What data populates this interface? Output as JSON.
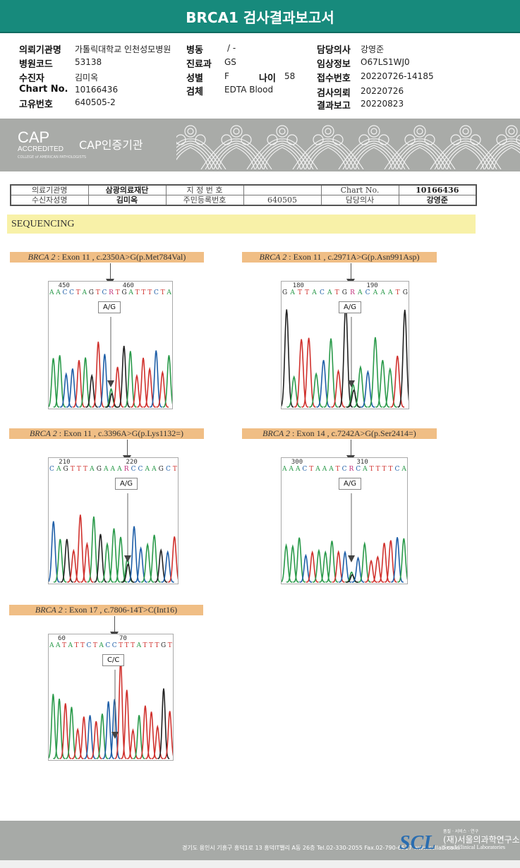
{
  "title": "BRCA1 검사결과보고서",
  "info": {
    "c1": [
      {
        "label": "의뢰기관명",
        "value": "가톨릭대학교 인천성모병원"
      },
      {
        "label": "병원코드",
        "value": "53138"
      },
      {
        "label": "수진자",
        "value": "김미옥"
      },
      {
        "label": "Chart No.",
        "value": "10166436"
      },
      {
        "label": "고유번호",
        "value": "640505-2"
      }
    ],
    "c2": [
      {
        "label": "병동",
        "value": "/ -"
      },
      {
        "label": "진료과",
        "value": "GS"
      },
      {
        "label": "성별",
        "value": "F"
      },
      {
        "label": "검체",
        "value": "EDTA Blood"
      }
    ],
    "age": {
      "label": "나이",
      "value": "58"
    },
    "c3": [
      {
        "label": "담당의사",
        "value": "강영준"
      },
      {
        "label": "임상정보",
        "value": "O67LS1WJ0"
      },
      {
        "label": "접수번호",
        "value": "20220726-14185"
      },
      {
        "label": "검사의뢰",
        "value": "20220726"
      },
      {
        "label": "결과보고",
        "value": "20220823"
      }
    ]
  },
  "cap": {
    "logo": "CAP",
    "accredited": "ACCREDITED",
    "college": "COLLEGE of AMERICAN PATHOLOGISTS",
    "name": "CAP인증기관"
  },
  "ref_table": {
    "r1": [
      "의료기관명",
      "삼광의료재단",
      "지 정 번 호",
      "",
      "Chart No.",
      "10166436"
    ],
    "r2": [
      "수신자성명",
      "김미옥",
      "주민등록번호",
      "640505",
      "담당의사",
      "강영준"
    ]
  },
  "section": "SEQUENCING",
  "colors": {
    "A": "#2a9a4a",
    "C": "#1f5fa8",
    "G": "#222222",
    "T": "#d0312d",
    "R": "#c0307a"
  },
  "variants": [
    {
      "gene": "BRCA 2",
      "desc": " : Exon 11 , c.2350A>G(p.Met784Val)",
      "n1": "450",
      "n2": "460",
      "seq": "AACCTAGTCRTGATTTCTA",
      "call": "A/G"
    },
    {
      "gene": "BRCA 2",
      "desc": " : Exon 11 , c.2971A>G(p.Asn991Asp)",
      "n1": "180",
      "n2": "190",
      "seq": "GATTACATGRACAAATG",
      "call": "A/G"
    },
    {
      "gene": "BRCA 2",
      "desc": " : Exon 11 , c.3396A>G(p.Lys1132=)",
      "n1": "210",
      "n2": "220",
      "seq": "CAGTTTAGAAARCCAAGCT",
      "call": "A/G"
    },
    {
      "gene": "BRCA 2",
      "desc": " : Exon 14 , c.7242A>G(p.Ser2414=)",
      "n1": "300",
      "n2": "310",
      "seq": "AAACTAAATCRCATTTTCA",
      "call": "A/G"
    },
    {
      "gene": "BRCA 2",
      "desc": " : Exon 17 , c.7806-14T>C(Int16)",
      "n1": "60",
      "n2": "70",
      "seq": "AATATTCTACCTTTATTTGT",
      "call": "C/C"
    }
  ],
  "footer": {
    "address": "경기도 용인시 기흥구 흥덕1로 13 흥덕IT밸리 A동 26층  Tel.02-330-2055  Fax.02-790-6517  www.scllab.co.kr",
    "logo": "SCL",
    "tagline": "품질 · 서비스 · 연구",
    "name_kr": "(재)서울의과학연구소",
    "name_en": "Seoul Clinical Laboratories"
  }
}
